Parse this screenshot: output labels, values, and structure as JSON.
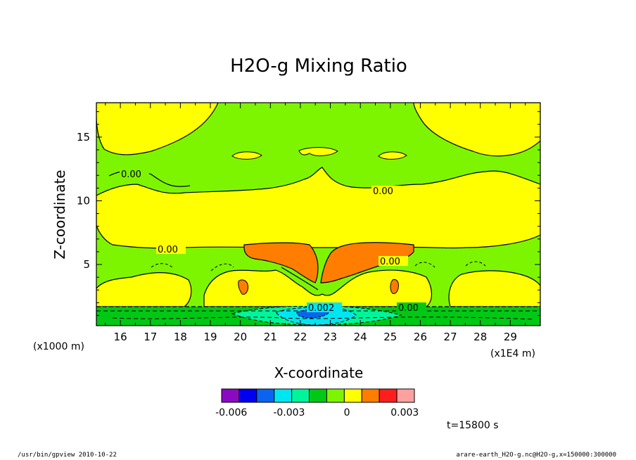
{
  "chart_data": {
    "type": "contour",
    "title": "H2O-g Mixing Ratio",
    "xlabel": "X-coordinate",
    "ylabel": "Z-coordinate",
    "x_unit_left": "(x1000 m)",
    "x_unit_right": "(x1E4 m)",
    "xlim": [
      15.2,
      30.0
    ],
    "ylim": [
      0.2,
      17.7
    ],
    "x_ticks": [
      16,
      17,
      18,
      19,
      20,
      21,
      22,
      23,
      24,
      25,
      26,
      27,
      28,
      29
    ],
    "y_ticks": [
      5,
      10,
      15
    ],
    "contour_labels": [
      "0.00",
      "0.00",
      "0.00",
      "0.00",
      "0.00",
      "0.002"
    ],
    "colorbar": {
      "levels": [
        -0.0065,
        -0.0055,
        -0.0045,
        -0.0035,
        -0.0025,
        -0.0015,
        -0.0005,
        0.0005,
        0.0015,
        0.0025,
        0.0035
      ],
      "colors": [
        "#8a0ac2",
        "#0000f0",
        "#0a64f0",
        "#00e6f0",
        "#00f59a",
        "#00c814",
        "#7df500",
        "#ffff00",
        "#ff7d00",
        "#ff1e1e",
        "#ffa0a0"
      ],
      "tick_labels": [
        "-0.006",
        "-0.003",
        "0",
        "0.003"
      ],
      "tick_values": [
        -0.006,
        -0.003,
        0,
        0.003
      ]
    },
    "regions": [
      {
        "level": "0.0005 to 0.0015",
        "color": "#ffff00",
        "description": "moist bands near z=2-4 and z=8-12, upper corners"
      },
      {
        "level": "0.0015 to 0.0025",
        "color": "#ff7d00",
        "description": "central moist lobes near x=20-25, z=4-7"
      },
      {
        "level": "-0.0005 to 0.0005",
        "color": "#7df500",
        "description": "background"
      },
      {
        "level": "below -0.0025",
        "color": "#0a64f0",
        "description": "dry pocket near x=22.5, z=1"
      }
    ]
  },
  "annotation_time": "t=15800 s",
  "footer_left": "/usr/bin/gpview  2010-10-22",
  "footer_right": "arare-earth_H2O-g.nc@H2O-g,x=150000:300000"
}
